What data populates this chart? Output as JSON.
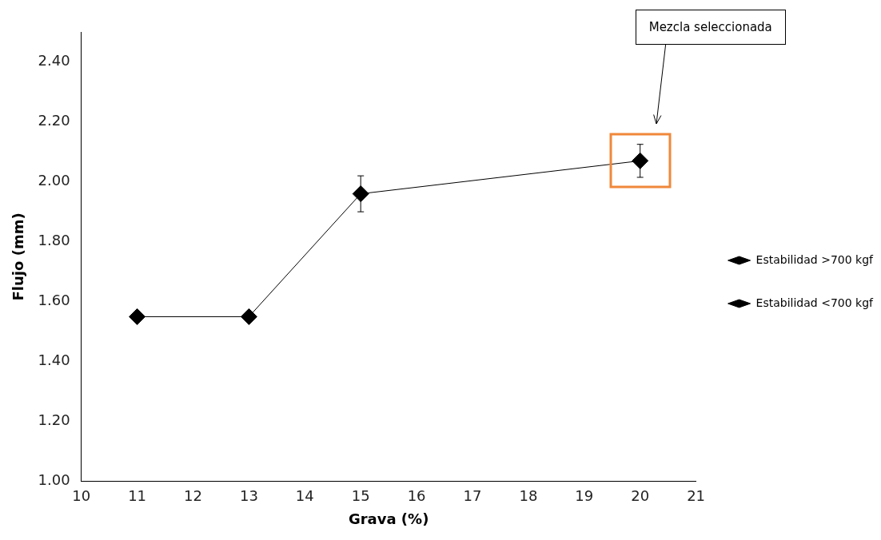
{
  "chart_data": {
    "type": "line",
    "xlabel": "Grava (%)",
    "ylabel": "Flujo (mm)",
    "x": [
      11,
      13,
      15,
      20
    ],
    "series": [
      {
        "name": "Estabilidad >700 kgf",
        "color": "#000000",
        "values": [
          1.55,
          1.55,
          1.96,
          2.07
        ],
        "errors": [
          null,
          null,
          0.06,
          0.055
        ]
      },
      {
        "name": "Estabilidad <700 kgf",
        "color": "#000000",
        "values": [
          null,
          null,
          null,
          null
        ]
      }
    ],
    "xlim": [
      10,
      21
    ],
    "xticks": [
      10,
      11,
      12,
      13,
      14,
      15,
      16,
      17,
      18,
      19,
      20,
      21
    ],
    "ylim": [
      1,
      2.5
    ],
    "yticks": [
      {
        "value": 1,
        "label": "1.00"
      },
      {
        "value": 1.2,
        "label": "1.20"
      },
      {
        "value": 1.4,
        "label": "1.40"
      },
      {
        "value": 1.6,
        "label": "1.60"
      },
      {
        "value": 1.8,
        "label": "1.80"
      },
      {
        "value": 2,
        "label": "2.00"
      },
      {
        "value": 2.2,
        "label": "2.20"
      },
      {
        "value": 2.4,
        "label": "2.40"
      }
    ],
    "grid": false,
    "legend": "right",
    "marker": "diamond",
    "line_style": "solid",
    "annotations": [
      "Mezcla seleccionada"
    ]
  }
}
